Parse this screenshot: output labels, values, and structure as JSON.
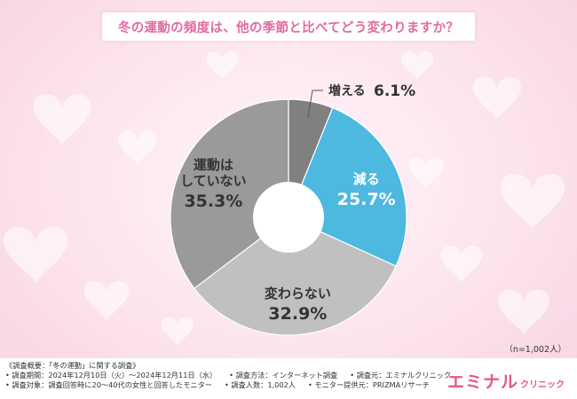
{
  "title": "冬の運動の頻度は、他の季節と比べてどう変わりますか？",
  "sample_size": "（n=1,002人）",
  "colors": {
    "title": "#e36aa0",
    "brand": "#e4578f",
    "slice_increase": "#808080",
    "slice_decrease": "#4db8e0",
    "slice_same": "#c0c0c0",
    "slice_none": "#9a9a9a"
  },
  "chart_data": {
    "type": "pie",
    "donut": true,
    "title": "冬の運動の頻度は、他の季節と比べてどう変わりますか？",
    "slices": [
      {
        "label": "増える",
        "value": 6.1,
        "display": "6.1%",
        "color": "#808080"
      },
      {
        "label": "減る",
        "value": 25.7,
        "display": "25.7%",
        "color": "#4db8e0"
      },
      {
        "label": "変わらない",
        "value": 32.9,
        "display": "32.9%",
        "color": "#c0c0c0"
      },
      {
        "label": "運動は していない",
        "value": 35.3,
        "display": "35.3%",
        "color": "#9a9a9a"
      }
    ],
    "start": "top",
    "direction": "clockwise"
  },
  "footer": {
    "rows": [
      [
        "《調査概要：「冬の運動」に関する調査》"
      ],
      [
        "• 調査期間：2024年12月10日（火）〜2024年12月11日（水）",
        "• 調査方法：インターネット調査",
        "• 調査元：エミナルクリニック"
      ],
      [
        "• 調査対象：調査回答時に20〜40代の女性と回答したモニター",
        "• 調査人数：1,002人",
        "• モニター提供元：PRIZMAリサーチ"
      ]
    ]
  },
  "brand": {
    "name": "エミナル",
    "sub": "クリニック"
  }
}
